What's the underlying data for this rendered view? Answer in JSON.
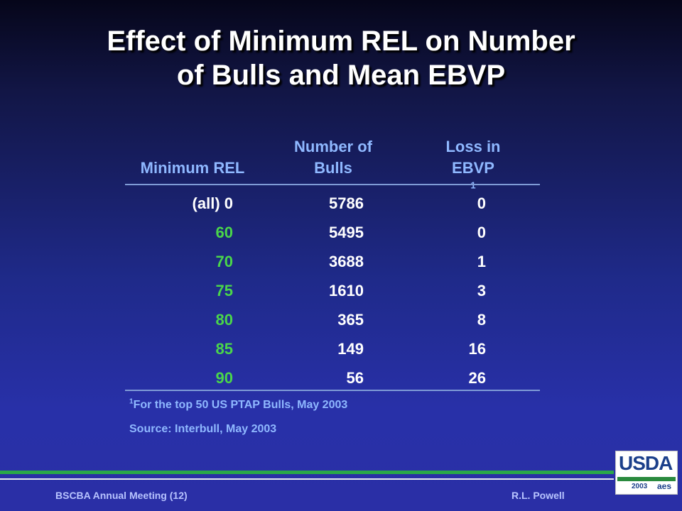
{
  "title": {
    "line1": "Effect of Minimum REL on Number",
    "line2": "of Bulls and Mean EBVP"
  },
  "table": {
    "headers": {
      "rel": "Minimum REL",
      "bulls_line1": "Number of",
      "bulls_line2": "Bulls",
      "loss_line1": "Loss in",
      "loss_line2": "EBVP",
      "loss_sup": "1"
    },
    "rows": [
      {
        "rel": "(all) 0",
        "bulls": "5786",
        "loss": "0"
      },
      {
        "rel": "60",
        "bulls": "5495",
        "loss": "0"
      },
      {
        "rel": "70",
        "bulls": "3688",
        "loss": "1"
      },
      {
        "rel": "75",
        "bulls": "1610",
        "loss": "3"
      },
      {
        "rel": "80",
        "bulls": "365",
        "loss": "8"
      },
      {
        "rel": "85",
        "bulls": "149",
        "loss": "16"
      },
      {
        "rel": "90",
        "bulls": "56",
        "loss": "26"
      }
    ]
  },
  "notes": {
    "footnote_sup": "1",
    "footnote": "For the top 50 US PTAP Bulls, May 2003",
    "source": "Source: Interbull, May 2003"
  },
  "footer": {
    "left": "BSCBA Annual Meeting (12)",
    "right": "R.L. Powell"
  },
  "logo": {
    "word": "USDA",
    "year": "2003",
    "mark": "aes"
  },
  "colors": {
    "title": "#ffffff",
    "header": "#8fb8ff",
    "rel_values": "#4ad64a",
    "values": "#ffffff",
    "green_rule": "#2aa84a"
  }
}
